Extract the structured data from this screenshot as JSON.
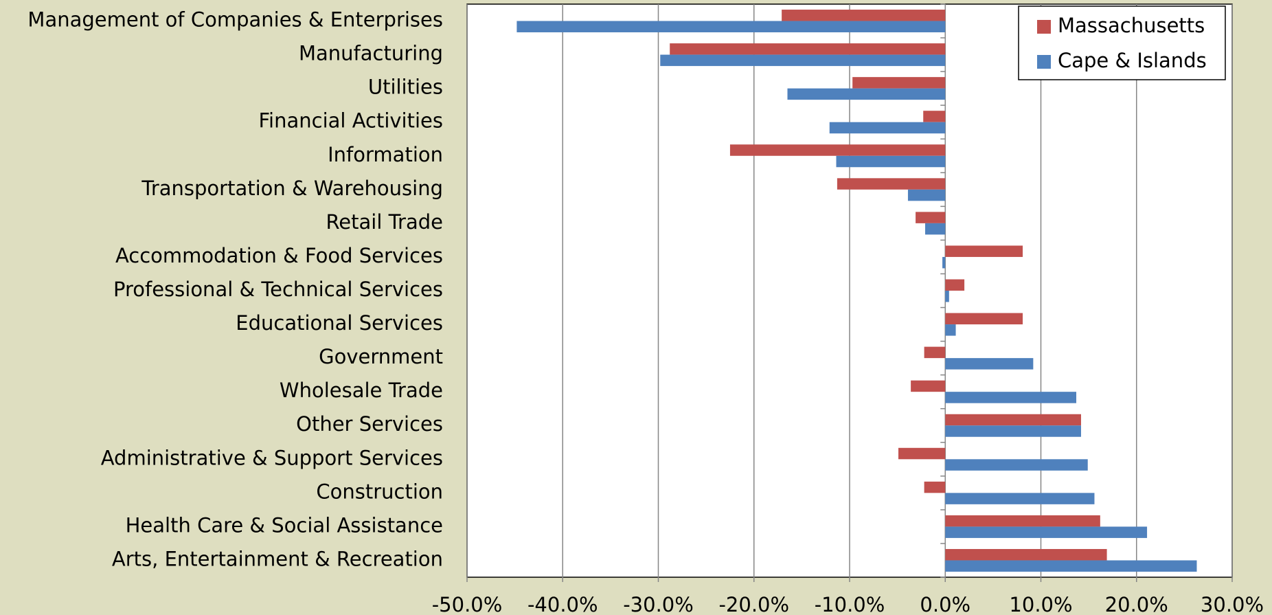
{
  "chart_data": {
    "type": "bar",
    "orientation": "horizontal",
    "categories": [
      "Management of Companies & Enterprises",
      "Manufacturing",
      "Utilities",
      "Financial Activities",
      "Information",
      "Transportation & Warehousing",
      "Retail Trade",
      "Accommodation & Food Services",
      "Professional & Technical Services",
      "Educational Services",
      "Government",
      "Wholesale Trade",
      "Other Services",
      "Administrative & Support Services",
      "Construction",
      "Health Care & Social Assistance",
      "Arts, Entertainment & Recreation"
    ],
    "series": [
      {
        "name": "Massachusetts",
        "color": "#c0504d",
        "values": [
          -17.1,
          -28.8,
          -9.7,
          -2.3,
          -22.5,
          -11.3,
          -3.1,
          8.1,
          2.0,
          8.1,
          -2.2,
          -3.6,
          14.2,
          -4.9,
          -2.2,
          16.2,
          16.9
        ]
      },
      {
        "name": "Cape & Islands",
        "color": "#4f81bd",
        "values": [
          -44.8,
          -29.8,
          -16.5,
          -12.1,
          -11.4,
          -3.9,
          -2.1,
          -0.3,
          0.4,
          1.1,
          9.2,
          13.7,
          14.2,
          14.9,
          15.6,
          21.1,
          26.3
        ]
      }
    ],
    "xlim": [
      -50,
      30
    ],
    "xticks": [
      {
        "value": -50,
        "label": "-50.0%"
      },
      {
        "value": -40,
        "label": "-40.0%"
      },
      {
        "value": -30,
        "label": "-30.0%"
      },
      {
        "value": -20,
        "label": "-20.0%"
      },
      {
        "value": -10,
        "label": "-10.0%"
      },
      {
        "value": 0,
        "label": "0.0%"
      },
      {
        "value": 10,
        "label": "10.0%"
      },
      {
        "value": 20,
        "label": "20.0%"
      },
      {
        "value": 30,
        "label": "30.0%"
      }
    ],
    "grid": true,
    "legend": "top-right"
  }
}
